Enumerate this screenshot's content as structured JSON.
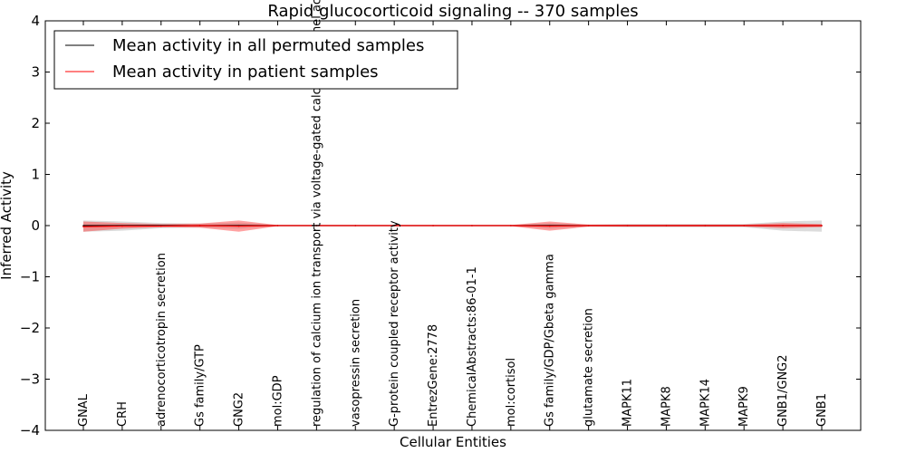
{
  "chart_data": {
    "type": "line",
    "title": "Rapid glucocorticoid signaling -- 370 samples",
    "xlabel": "Cellular Entities",
    "ylabel": "Inferred Activity",
    "ylim": [
      -4,
      4
    ],
    "yticks": [
      4,
      3,
      2,
      1,
      0,
      -1,
      -2,
      -3,
      -4
    ],
    "ytick_labels": [
      "4",
      "3",
      "2",
      "1",
      "0",
      "−1",
      "−2",
      "−3",
      "−4"
    ],
    "categories": [
      "GNAL",
      "CRH",
      "adrenocorticotropin secretion",
      "Gs family/GTP",
      "GNG2",
      "mol:GDP",
      "regulation of calcium ion transport via voltage-gated calcium channel activity",
      "vasopressin secretion",
      "G-protein coupled receptor activity",
      "EntrezGene:2778",
      "ChemicalAbstracts:86-01-1",
      "mol:cortisol",
      "Gs family/GDP/Gbeta gamma",
      "glutamate secretion",
      "MAPK11",
      "MAPK8",
      "MAPK14",
      "MAPK9",
      "GNB1/GNG2",
      "GNB1"
    ],
    "series": [
      {
        "name": "Mean activity in all permuted samples",
        "color": "#000000",
        "band_color": "#9a9a9a",
        "values": [
          0.0,
          0.0,
          0.0,
          0.0,
          0.0,
          0.0,
          0.0,
          0.0,
          0.0,
          0.0,
          0.0,
          0.0,
          0.0,
          0.0,
          0.0,
          0.0,
          0.0,
          0.0,
          0.0,
          0.0
        ],
        "lower": [
          -0.12,
          -0.1,
          -0.05,
          -0.04,
          -0.06,
          -0.01,
          -0.01,
          -0.01,
          -0.01,
          -0.01,
          -0.01,
          -0.01,
          -0.06,
          -0.02,
          -0.03,
          -0.03,
          -0.03,
          -0.03,
          -0.1,
          -0.12
        ],
        "upper": [
          0.1,
          0.08,
          0.05,
          0.04,
          0.06,
          0.01,
          0.01,
          0.01,
          0.01,
          0.01,
          0.01,
          0.01,
          0.05,
          0.02,
          0.03,
          0.03,
          0.03,
          0.03,
          0.08,
          0.1
        ]
      },
      {
        "name": "Mean activity in patient samples",
        "color": "#ff0000",
        "band_color": "#ff3030",
        "values": [
          -0.02,
          -0.01,
          -0.01,
          0.0,
          -0.01,
          0.0,
          0.0,
          0.0,
          0.0,
          0.0,
          0.0,
          0.0,
          -0.01,
          0.0,
          0.0,
          0.0,
          0.0,
          0.0,
          0.0,
          0.0
        ],
        "lower": [
          -0.12,
          -0.06,
          -0.03,
          -0.04,
          -0.12,
          -0.01,
          -0.01,
          -0.01,
          -0.01,
          -0.01,
          -0.01,
          -0.01,
          -0.1,
          -0.02,
          -0.02,
          -0.02,
          -0.02,
          -0.02,
          -0.05,
          -0.03
        ],
        "upper": [
          0.08,
          0.05,
          0.03,
          0.04,
          0.1,
          0.01,
          0.01,
          0.01,
          0.01,
          0.01,
          0.01,
          0.01,
          0.08,
          0.02,
          0.02,
          0.02,
          0.02,
          0.02,
          0.05,
          0.03
        ]
      }
    ],
    "legend_position": "top-left",
    "grid": false
  }
}
